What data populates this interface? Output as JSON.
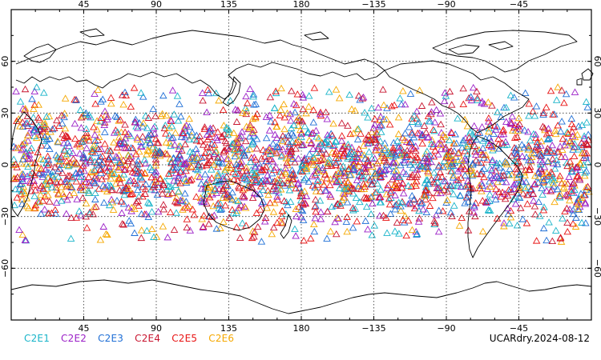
{
  "map": {
    "lon_ticks": [
      "45",
      "90",
      "135",
      "180",
      "−135",
      "−90",
      "−45"
    ],
    "lat_ticks_left": [
      "60",
      "30",
      "0",
      "−30",
      "−60"
    ],
    "lat_ticks_right": [
      "60",
      "30",
      "0",
      "−30",
      "−60"
    ],
    "lon_range": [
      0,
      360
    ],
    "lat_range": [
      -90,
      90
    ],
    "projection": "cylindrical equidistant, centered on 180",
    "marker": "open-triangle",
    "obs_lat_band": [
      -45,
      45
    ],
    "grid": "dotted"
  },
  "legend": {
    "items": [
      {
        "label": "C2E1",
        "color": "#18b4c9"
      },
      {
        "label": "C2E2",
        "color": "#9b1fc7"
      },
      {
        "label": "C2E3",
        "color": "#1f6fd6"
      },
      {
        "label": "C2E4",
        "color": "#c8142f"
      },
      {
        "label": "C2E5",
        "color": "#e81414"
      },
      {
        "label": "C2E6",
        "color": "#f5a800"
      }
    ]
  },
  "caption": "UCARdry.2024-08-12"
}
